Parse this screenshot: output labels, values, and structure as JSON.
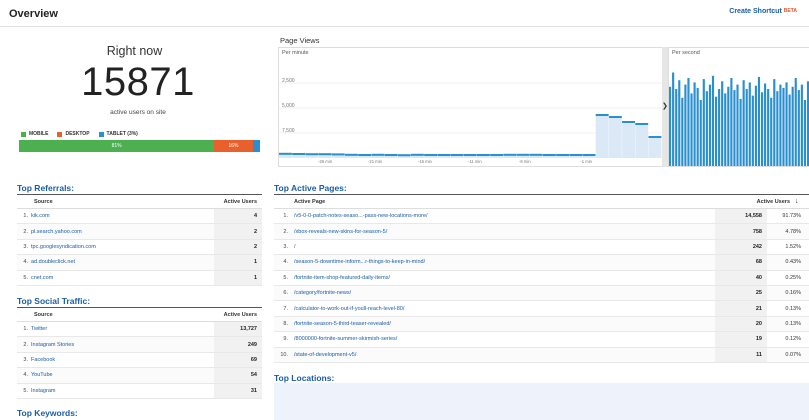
{
  "header": {
    "title": "Overview",
    "shortcut_label": "Create Shortcut",
    "shortcut_badge": "BETA"
  },
  "right_now": {
    "label": "Right now",
    "count": "15871",
    "sublabel": "active users on site",
    "legend": [
      {
        "name": "MOBILE",
        "color": "#4caf50"
      },
      {
        "name": "DESKTOP",
        "color": "#e8602c"
      },
      {
        "name": "TABLET (3%)",
        "color": "#2a8fd0"
      }
    ],
    "devices": [
      {
        "label": "81%",
        "fraction": 0.81,
        "color": "#4caf50"
      },
      {
        "label": "16%",
        "fraction": 0.16,
        "color": "#e8602c"
      },
      {
        "label": "",
        "fraction": 0.03,
        "color": "#2a8fd0"
      }
    ]
  },
  "page_views": {
    "title": "Page Views",
    "per_minute_label": "Per minute",
    "per_second_label": "Per second",
    "y_ticks": [
      "7,500",
      "5,000",
      "2,500"
    ],
    "x_ticks": [
      "-26 min",
      "-21 min",
      "-16 min",
      "-11 min",
      "-6 min",
      "-1 min"
    ],
    "chart_data": {
      "type": "bar",
      "ylim": [
        0,
        10000
      ],
      "yticks": [
        2500,
        5000,
        7500
      ],
      "xticks": [
        "-26 min",
        "-21 min",
        "-16 min",
        "-11 min",
        "-6 min",
        "-1 min"
      ],
      "series": [
        {
          "name": "Per minute",
          "values": [
            420,
            400,
            380,
            380,
            360,
            320,
            300,
            320,
            300,
            280,
            320,
            300,
            300,
            300,
            300,
            300,
            300,
            320,
            320,
            320,
            300,
            300,
            300,
            300,
            4300,
            4100,
            3600,
            3400,
            2100
          ]
        },
        {
          "name": "Per second",
          "values": [
            72,
            85,
            70,
            78,
            62,
            74,
            80,
            66,
            76,
            71,
            60,
            79,
            68,
            74,
            82,
            63,
            70,
            77,
            66,
            72,
            80,
            69,
            74,
            61,
            78,
            70,
            76,
            64,
            73,
            81,
            67,
            75,
            70,
            62,
            79,
            68,
            74,
            71,
            76,
            65,
            72,
            80,
            69,
            74,
            60,
            77
          ]
        }
      ]
    }
  },
  "top_referrals": {
    "title": "Top Referrals:",
    "col_source": "Source",
    "col_active": "Active Users",
    "rows": [
      {
        "i": "1.",
        "source": "kik.com",
        "users": "4"
      },
      {
        "i": "2.",
        "source": "pl.search.yahoo.com",
        "users": "2"
      },
      {
        "i": "3.",
        "source": "tpc.googlesyndication.com",
        "users": "2"
      },
      {
        "i": "4.",
        "source": "ad.doubleclick.net",
        "users": "1"
      },
      {
        "i": "5.",
        "source": "cnet.com",
        "users": "1"
      }
    ]
  },
  "top_social": {
    "title": "Top Social Traffic:",
    "col_source": "Source",
    "col_active": "Active Users",
    "rows": [
      {
        "i": "1.",
        "source": "Twitter",
        "users": "13,727"
      },
      {
        "i": "2.",
        "source": "Instagram Stories",
        "users": "249"
      },
      {
        "i": "3.",
        "source": "Facebook",
        "users": "69"
      },
      {
        "i": "4.",
        "source": "YouTube",
        "users": "54"
      },
      {
        "i": "5.",
        "source": "Instagram",
        "users": "31"
      }
    ]
  },
  "top_keywords": {
    "title": "Top Keywords:"
  },
  "top_pages": {
    "title": "Top Active Pages:",
    "col_page": "Active Page",
    "col_active": "Active Users",
    "rows": [
      {
        "i": "1.",
        "page": "/v5-0-0-patch-notes-seaso...-pass-new-locations-more/",
        "users": "14,558",
        "pct": "91.73%"
      },
      {
        "i": "2.",
        "page": "/xbox-reveals-new-skins-for-season-5/",
        "users": "758",
        "pct": "4.78%"
      },
      {
        "i": "3.",
        "page": "/",
        "users": "242",
        "pct": "1.52%"
      },
      {
        "i": "4.",
        "page": "/season-5-downtime-inform...r-things-to-keep-in-mind/",
        "users": "68",
        "pct": "0.43%"
      },
      {
        "i": "5.",
        "page": "/fortnite-item-shop-featured-daily-items/",
        "users": "40",
        "pct": "0.25%"
      },
      {
        "i": "6.",
        "page": "/category/fortnite-news/",
        "users": "25",
        "pct": "0.16%"
      },
      {
        "i": "7.",
        "page": "/calculator-to-work-out-if-youll-reach-level-80/",
        "users": "21",
        "pct": "0.13%"
      },
      {
        "i": "8.",
        "page": "/fortnite-season-5-third-teaser-revealed/",
        "users": "20",
        "pct": "0.13%"
      },
      {
        "i": "9.",
        "page": "/8000000-fortnite-summer-skirmish-series/",
        "users": "19",
        "pct": "0.12%"
      },
      {
        "i": "10.",
        "page": "/state-of-development-v5/",
        "users": "11",
        "pct": "0.07%"
      }
    ]
  },
  "top_locations": {
    "title": "Top Locations:"
  }
}
